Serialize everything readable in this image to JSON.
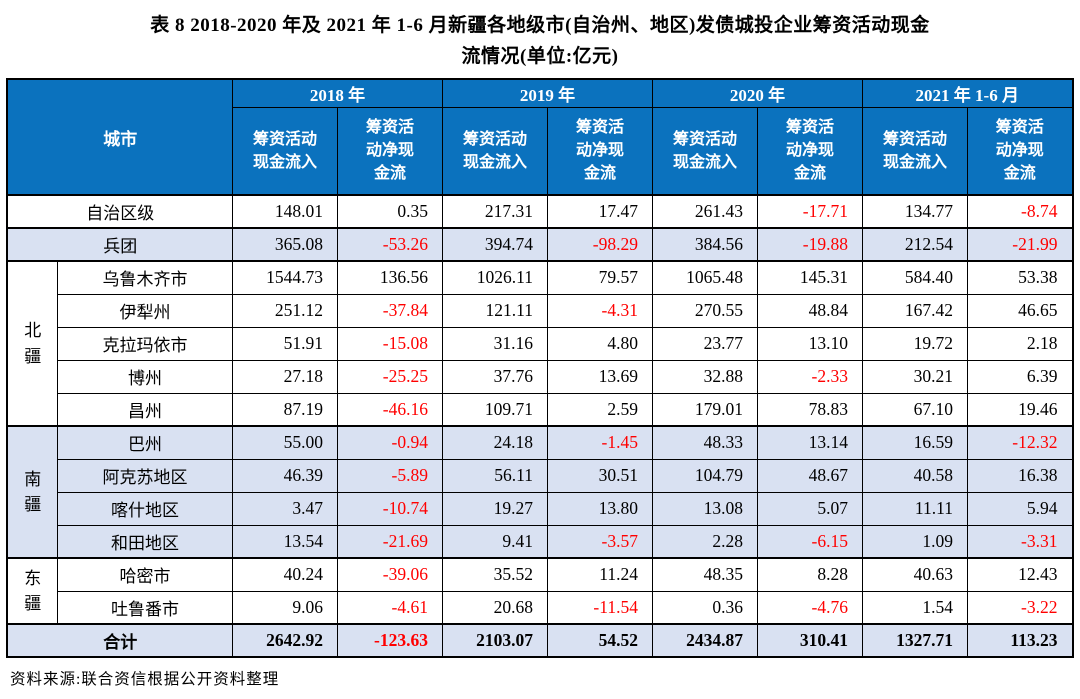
{
  "title": {
    "line1": "表 8  2018-2020 年及 2021 年 1-6 月新疆各地级市(自治州、地区)发债城投企业筹资活动现金",
    "line2": "流情况(单位:亿元)"
  },
  "colors": {
    "header-blue": "#0b72be",
    "shade": "#d9e1f2",
    "neg-red": "#ff0000",
    "border": "#000000"
  },
  "table": {
    "corner_header": "城市",
    "year_groups": [
      "2018 年",
      "2019 年",
      "2020 年",
      "2021 年 1-6 月"
    ],
    "sub_headers": [
      "筹资活动\n现金流入",
      "筹资活\n动净现\n金流"
    ],
    "rows": [
      {
        "city": "自治区级",
        "merged": true,
        "shade": false,
        "values": [
          "148.01",
          "0.35",
          "217.31",
          "17.47",
          "261.43",
          "-17.71",
          "134.77",
          "-8.74"
        ]
      },
      {
        "city": "兵团",
        "merged": true,
        "shade": true,
        "group_start": true,
        "values": [
          "365.08",
          "-53.26",
          "394.74",
          "-98.29",
          "384.56",
          "-19.88",
          "212.54",
          "-21.99"
        ]
      },
      {
        "region": "北疆",
        "region_span": 5,
        "city": "乌鲁木齐市",
        "shade": false,
        "group_start": true,
        "values": [
          "1544.73",
          "136.56",
          "1026.11",
          "79.57",
          "1065.48",
          "145.31",
          "584.40",
          "53.38"
        ]
      },
      {
        "city": "伊犁州",
        "shade": false,
        "values": [
          "251.12",
          "-37.84",
          "121.11",
          "-4.31",
          "270.55",
          "48.84",
          "167.42",
          "46.65"
        ]
      },
      {
        "city": "克拉玛依市",
        "shade": false,
        "values": [
          "51.91",
          "-15.08",
          "31.16",
          "4.80",
          "23.77",
          "13.10",
          "19.72",
          "2.18"
        ]
      },
      {
        "city": "博州",
        "shade": false,
        "values": [
          "27.18",
          "-25.25",
          "37.76",
          "13.69",
          "32.88",
          "-2.33",
          "30.21",
          "6.39"
        ]
      },
      {
        "city": "昌州",
        "shade": false,
        "values": [
          "87.19",
          "-46.16",
          "109.71",
          "2.59",
          "179.01",
          "78.83",
          "67.10",
          "19.46"
        ]
      },
      {
        "region": "南疆",
        "region_span": 4,
        "city": "巴州",
        "shade": true,
        "group_start": true,
        "values": [
          "55.00",
          "-0.94",
          "24.18",
          "-1.45",
          "48.33",
          "13.14",
          "16.59",
          "-12.32"
        ]
      },
      {
        "city": "阿克苏地区",
        "shade": true,
        "values": [
          "46.39",
          "-5.89",
          "56.11",
          "30.51",
          "104.79",
          "48.67",
          "40.58",
          "16.38"
        ]
      },
      {
        "city": "喀什地区",
        "shade": true,
        "values": [
          "3.47",
          "-10.74",
          "19.27",
          "13.80",
          "13.08",
          "5.07",
          "11.11",
          "5.94"
        ]
      },
      {
        "city": "和田地区",
        "shade": true,
        "values": [
          "13.54",
          "-21.69",
          "9.41",
          "-3.57",
          "2.28",
          "-6.15",
          "1.09",
          "-3.31"
        ]
      },
      {
        "region": "东疆",
        "region_span": 2,
        "city": "哈密市",
        "shade": false,
        "group_start": true,
        "values": [
          "40.24",
          "-39.06",
          "35.52",
          "11.24",
          "48.35",
          "8.28",
          "40.63",
          "12.43"
        ]
      },
      {
        "city": "吐鲁番市",
        "shade": false,
        "values": [
          "9.06",
          "-4.61",
          "20.68",
          "-11.54",
          "0.36",
          "-4.76",
          "1.54",
          "-3.22"
        ]
      },
      {
        "city": "合计",
        "merged": true,
        "shade": true,
        "bold": true,
        "group_start": true,
        "values": [
          "2642.92",
          "-123.63",
          "2103.07",
          "54.52",
          "2434.87",
          "310.41",
          "1327.71",
          "113.23"
        ]
      }
    ]
  },
  "source_note": "资料来源:联合资信根据公开资料整理"
}
